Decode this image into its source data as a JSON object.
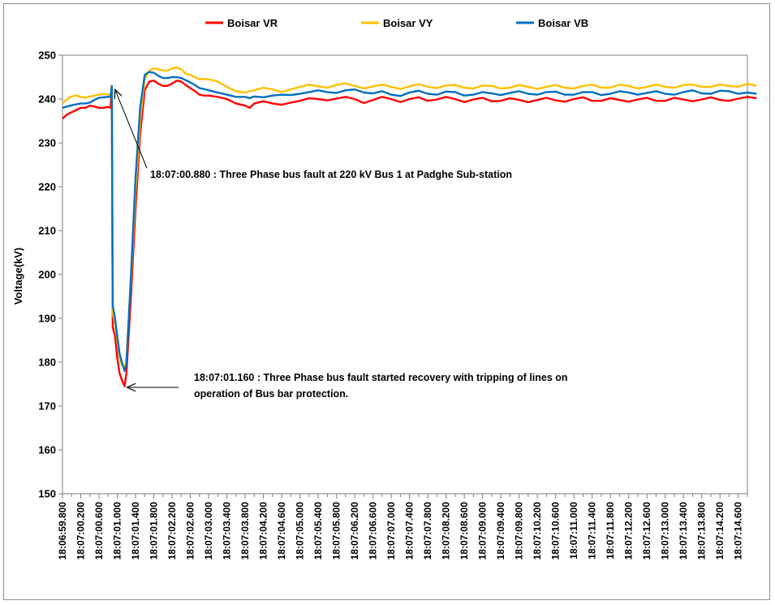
{
  "chart_data": {
    "type": "line",
    "title": "",
    "xlabel": "",
    "ylabel": "Voltage(kV)",
    "ylim": [
      150,
      250
    ],
    "y_ticks": [
      150,
      160,
      170,
      180,
      190,
      200,
      210,
      220,
      230,
      240,
      250
    ],
    "x_tick_labels": [
      "18:06:59.800",
      "18:07:00.200",
      "18:07:00.600",
      "18:07:01.000",
      "18:07:01.400",
      "18:07:01.800",
      "18:07:02.200",
      "18:07:02.600",
      "18:07:03.000",
      "18:07:03.400",
      "18:07:03.800",
      "18:07:04.200",
      "18:07:04.600",
      "18:07:05.000",
      "18:07:05.400",
      "18:07:05.800",
      "18:07:06.200",
      "18:07:06.600",
      "18:07:07.000",
      "18:07:07.400",
      "18:07:07.800",
      "18:07:08.200",
      "18:07:08.600",
      "18:07:09.000",
      "18:07:09.400",
      "18:07:09.800",
      "18:07:10.200",
      "18:07:10.600",
      "18:07:11.000",
      "18:07:11.400",
      "18:07:11.800",
      "18:07:12.200",
      "18:07:12.600",
      "18:07:13.000",
      "18:07:13.400",
      "18:07:13.800",
      "18:07:14.200",
      "18:07:14.600"
    ],
    "x_range_seconds": [
      59.8,
      75.0
    ],
    "grid": false,
    "legend_position": "top",
    "series": [
      {
        "name": "Boisar VR",
        "color": "#ff0000",
        "x": [
          59.8,
          59.9,
          60.0,
          60.1,
          60.2,
          60.3,
          60.4,
          60.5,
          60.6,
          60.7,
          60.8,
          60.85,
          60.88,
          60.9,
          60.95,
          61.0,
          61.05,
          61.1,
          61.16,
          61.2,
          61.3,
          61.4,
          61.5,
          61.6,
          61.7,
          61.8,
          61.9,
          62.0,
          62.1,
          62.2,
          62.3,
          62.4,
          62.5,
          62.6,
          62.7,
          62.8,
          62.9,
          63.0,
          63.2,
          63.4,
          63.6,
          63.8,
          63.9,
          64.0,
          64.2,
          64.4,
          64.6,
          64.8,
          65.0,
          65.2,
          65.4,
          65.6,
          65.8,
          66.0,
          66.2,
          66.4,
          66.6,
          66.8,
          67.0,
          67.2,
          67.4,
          67.6,
          67.8,
          68.0,
          68.2,
          68.4,
          68.6,
          68.8,
          69.0,
          69.2,
          69.4,
          69.6,
          69.8,
          70.0,
          70.2,
          70.4,
          70.6,
          70.8,
          71.0,
          71.2,
          71.4,
          71.6,
          71.8,
          72.0,
          72.2,
          72.4,
          72.6,
          72.8,
          73.0,
          73.2,
          73.4,
          73.6,
          73.8,
          74.0,
          74.2,
          74.4,
          74.6,
          74.8,
          75.0
        ],
        "values": [
          235.5,
          236.5,
          237.0,
          237.5,
          238.0,
          238.0,
          238.5,
          238.3,
          238.0,
          238.0,
          238.2,
          238.0,
          242.0,
          188.0,
          186.0,
          181.0,
          177.5,
          176.0,
          174.5,
          177.5,
          195.0,
          215.0,
          232.0,
          242.0,
          244.0,
          244.2,
          243.5,
          243.0,
          243.0,
          243.5,
          244.2,
          244.0,
          243.2,
          242.5,
          241.8,
          241.0,
          240.8,
          240.8,
          240.5,
          240.0,
          239.0,
          238.5,
          238.0,
          239.0,
          239.5,
          239.0,
          238.7,
          239.2,
          239.6,
          240.2,
          240.0,
          239.7,
          240.1,
          240.5,
          240.0,
          239.1,
          239.8,
          240.5,
          240.0,
          239.3,
          240.0,
          240.4,
          239.6,
          239.9,
          240.5,
          240.0,
          239.3,
          239.9,
          240.3,
          239.5,
          239.6,
          240.2,
          239.8,
          239.3,
          239.8,
          240.3,
          239.7,
          239.4,
          240.0,
          240.4,
          239.6,
          239.6,
          240.2,
          239.8,
          239.4,
          239.9,
          240.3,
          239.6,
          239.6,
          240.3,
          239.9,
          239.5,
          239.9,
          240.4,
          239.8,
          239.6,
          240.1,
          240.5,
          240.2
        ]
      },
      {
        "name": "Boisar VY",
        "color": "#ffc000",
        "x": [
          59.8,
          59.9,
          60.0,
          60.1,
          60.2,
          60.3,
          60.4,
          60.5,
          60.6,
          60.7,
          60.8,
          60.85,
          60.88,
          60.9,
          60.95,
          61.0,
          61.05,
          61.1,
          61.16,
          61.2,
          61.3,
          61.4,
          61.5,
          61.6,
          61.7,
          61.8,
          61.9,
          62.0,
          62.1,
          62.2,
          62.3,
          62.4,
          62.5,
          62.6,
          62.7,
          62.8,
          62.9,
          63.0,
          63.2,
          63.4,
          63.6,
          63.8,
          63.9,
          64.0,
          64.2,
          64.4,
          64.6,
          64.8,
          65.0,
          65.2,
          65.4,
          65.6,
          65.8,
          66.0,
          66.2,
          66.4,
          66.6,
          66.8,
          67.0,
          67.2,
          67.4,
          67.6,
          67.8,
          68.0,
          68.2,
          68.4,
          68.6,
          68.8,
          69.0,
          69.2,
          69.4,
          69.6,
          69.8,
          70.0,
          70.2,
          70.4,
          70.6,
          70.8,
          71.0,
          71.2,
          71.4,
          71.6,
          71.8,
          72.0,
          72.2,
          72.4,
          72.6,
          72.8,
          73.0,
          73.2,
          73.4,
          73.6,
          73.8,
          74.0,
          74.2,
          74.4,
          74.6,
          74.8,
          75.0
        ],
        "values": [
          239.0,
          240.0,
          240.6,
          240.8,
          240.5,
          240.3,
          240.6,
          240.8,
          241.0,
          241.2,
          241.0,
          240.8,
          243.0,
          191.0,
          189.0,
          185.0,
          181.0,
          179.5,
          178.5,
          181.0,
          199.0,
          219.0,
          235.0,
          244.5,
          246.5,
          247.0,
          246.8,
          246.5,
          246.5,
          247.0,
          247.2,
          246.8,
          245.8,
          245.5,
          245.0,
          244.5,
          244.6,
          244.5,
          244.0,
          242.8,
          241.8,
          241.5,
          241.8,
          242.0,
          242.6,
          242.2,
          241.6,
          242.2,
          242.8,
          243.3,
          242.9,
          242.6,
          243.2,
          243.6,
          243.0,
          242.4,
          242.9,
          243.3,
          242.8,
          242.3,
          242.9,
          243.4,
          242.8,
          242.5,
          243.1,
          243.2,
          242.6,
          242.4,
          243.1,
          243.0,
          242.4,
          242.6,
          243.2,
          242.8,
          242.3,
          242.8,
          243.2,
          242.6,
          242.4,
          243.0,
          243.3,
          242.6,
          242.6,
          243.3,
          243.0,
          242.4,
          242.8,
          243.3,
          242.8,
          242.6,
          243.2,
          243.3,
          242.8,
          242.8,
          243.3,
          243.0,
          242.8,
          243.5,
          243.0
        ]
      },
      {
        "name": "Boisar VB",
        "color": "#0070c0",
        "x": [
          59.8,
          59.9,
          60.0,
          60.1,
          60.2,
          60.3,
          60.4,
          60.5,
          60.6,
          60.7,
          60.8,
          60.85,
          60.88,
          60.9,
          60.95,
          61.0,
          61.05,
          61.1,
          61.16,
          61.2,
          61.3,
          61.4,
          61.5,
          61.6,
          61.7,
          61.8,
          61.9,
          62.0,
          62.1,
          62.2,
          62.3,
          62.4,
          62.5,
          62.6,
          62.7,
          62.8,
          62.9,
          63.0,
          63.2,
          63.4,
          63.6,
          63.8,
          63.9,
          64.0,
          64.2,
          64.4,
          64.6,
          64.8,
          65.0,
          65.2,
          65.4,
          65.6,
          65.8,
          66.0,
          66.2,
          66.4,
          66.6,
          66.8,
          67.0,
          67.2,
          67.4,
          67.6,
          67.8,
          68.0,
          68.2,
          68.4,
          68.6,
          68.8,
          69.0,
          69.2,
          69.4,
          69.6,
          69.8,
          70.0,
          70.2,
          70.4,
          70.6,
          70.8,
          71.0,
          71.2,
          71.4,
          71.6,
          71.8,
          72.0,
          72.2,
          72.4,
          72.6,
          72.8,
          73.0,
          73.2,
          73.4,
          73.6,
          73.8,
          74.0,
          74.2,
          74.4,
          74.6,
          74.8,
          75.0
        ],
        "values": [
          238.0,
          238.3,
          238.6,
          238.8,
          239.0,
          239.0,
          239.2,
          239.8,
          240.3,
          240.4,
          240.5,
          240.5,
          243.0,
          193.0,
          190.0,
          186.0,
          182.0,
          180.0,
          178.0,
          179.5,
          200.0,
          222.0,
          238.0,
          245.5,
          246.2,
          246.0,
          245.3,
          244.8,
          244.8,
          245.0,
          245.0,
          244.8,
          244.3,
          243.8,
          243.2,
          242.5,
          242.3,
          242.0,
          241.5,
          241.0,
          240.5,
          240.5,
          240.2,
          240.6,
          240.4,
          240.8,
          241.0,
          240.9,
          241.2,
          241.6,
          242.0,
          241.6,
          241.4,
          242.0,
          242.2,
          241.5,
          241.3,
          241.8,
          241.0,
          240.7,
          241.5,
          241.9,
          241.2,
          241.0,
          241.7,
          241.6,
          240.8,
          241.0,
          241.6,
          241.3,
          240.9,
          241.4,
          241.8,
          241.2,
          241.0,
          241.6,
          241.7,
          241.0,
          241.0,
          241.6,
          241.6,
          240.9,
          241.2,
          241.8,
          241.5,
          241.0,
          241.4,
          241.8,
          241.2,
          241.0,
          241.6,
          242.0,
          241.3,
          241.2,
          241.9,
          241.8,
          241.2,
          241.5,
          241.2
        ]
      }
    ],
    "annotations": [
      {
        "text": "18:07:00.880  : Three Phase bus fault at 220  kV Bus 1 at  Padghe Sub-station",
        "x": 60.88,
        "y": 242.0
      },
      {
        "text_lines": [
          "18:07:01.160  : Three Phase bus fault started recovery with tripping of lines on",
          "operation of Bus bar protection."
        ],
        "x": 61.16,
        "y": 174.5
      }
    ]
  }
}
